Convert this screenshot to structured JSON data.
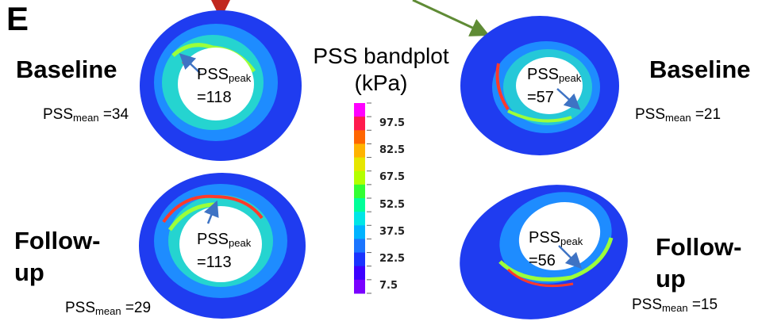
{
  "panel_letter": "E",
  "colorbar": {
    "title_line1": "PSS bandplot",
    "title_line2": "(kPa)",
    "ticks": [
      "97.5",
      "82.5",
      "67.5",
      "52.5",
      "37.5",
      "22.5",
      "7.5"
    ],
    "colors": [
      "#ff00ff",
      "#ff1a4d",
      "#ff6600",
      "#ffb300",
      "#e6e600",
      "#b3ff00",
      "#33ff33",
      "#00ff99",
      "#00e6e6",
      "#00b3ff",
      "#1a75ff",
      "#1a33ff",
      "#3d00ff",
      "#7a00ff"
    ]
  },
  "panels": {
    "left_baseline": {
      "label": "Baseline",
      "peak_label": "PSS",
      "peak_sub": "peak",
      "peak_value": "=118",
      "mean_label": "PSS",
      "mean_sub": "mean",
      "mean_value": " =34"
    },
    "right_baseline": {
      "label": "Baseline",
      "peak_label": "PSS",
      "peak_sub": "peak",
      "peak_value": "=57",
      "mean_label": "PSS",
      "mean_sub": "mean",
      "mean_value": " =21"
    },
    "left_followup": {
      "label_line1": "Follow-",
      "label_line2": "up",
      "peak_label": "PSS",
      "peak_sub": "peak",
      "peak_value": "=113",
      "mean_label": "PSS",
      "mean_sub": "mean",
      "mean_value": " =29"
    },
    "right_followup": {
      "label_line1": "Follow-",
      "label_line2": "up",
      "peak_label": "PSS",
      "peak_sub": "peak",
      "peak_value": "=56",
      "mean_label": "PSS",
      "mean_sub": "mean",
      "mean_value": " =15"
    }
  },
  "colors": {
    "vessel_outer": "#1f3cf0",
    "vessel_mid": "#1e8cff",
    "lumen": "#ffffff",
    "arrow_blue": "#3e73c4",
    "arrow_red": "#c0281e",
    "arrow_green": "#5f8b35"
  }
}
